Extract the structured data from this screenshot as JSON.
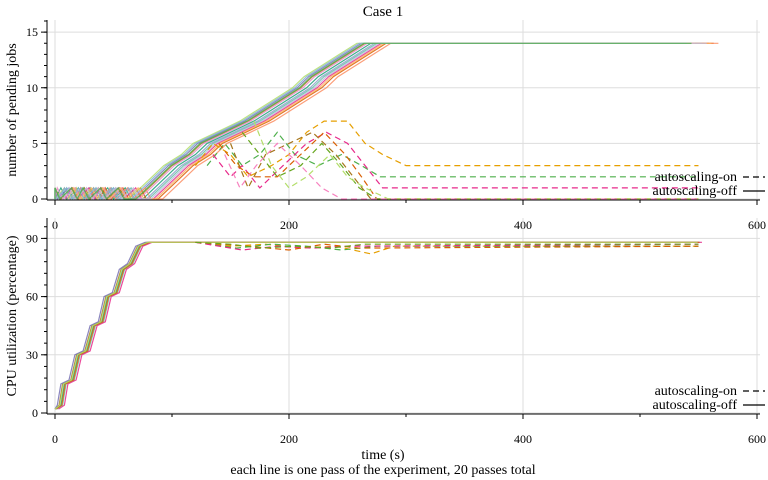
{
  "chart_data": [
    {
      "type": "line",
      "title": "Case 1",
      "ylabel": "number of pending jobs",
      "xlim": [
        0,
        600
      ],
      "ylim": [
        0,
        16
      ],
      "x_ticks": [
        0,
        200,
        400,
        600
      ],
      "y_ticks": [
        0,
        5,
        10,
        15
      ],
      "grid": true,
      "legend_position": "bottom-right",
      "legend": [
        {
          "label": "autoscaling-on",
          "style": "dashed"
        },
        {
          "label": "autoscaling-off",
          "style": "solid"
        }
      ],
      "series_off": {
        "name": "autoscaling-off",
        "style": "solid",
        "points": [
          [
            0,
            0
          ],
          [
            5,
            1
          ],
          [
            10,
            0
          ],
          [
            20,
            1
          ],
          [
            25,
            0
          ],
          [
            30,
            1
          ],
          [
            35,
            0
          ],
          [
            45,
            1
          ],
          [
            50,
            0
          ],
          [
            60,
            1
          ],
          [
            65,
            0
          ],
          [
            75,
            0
          ],
          [
            85,
            1
          ],
          [
            95,
            2
          ],
          [
            105,
            3
          ],
          [
            120,
            4
          ],
          [
            130,
            5
          ],
          [
            150,
            6
          ],
          [
            170,
            7
          ],
          [
            185,
            8
          ],
          [
            200,
            9
          ],
          [
            215,
            10
          ],
          [
            225,
            11
          ],
          [
            240,
            12
          ],
          [
            255,
            13
          ],
          [
            270,
            14
          ],
          [
            550,
            14
          ]
        ],
        "offsets": [
          0,
          5,
          -5,
          9,
          -8,
          13,
          -12,
          17,
          3,
          -3,
          11,
          -10,
          7,
          -6
        ]
      },
      "series_on": {
        "name": "autoscaling-on",
        "style": "dashed",
        "runs": [
          {
            "color": "#e69f00",
            "points": [
              [
                120,
                3
              ],
              [
                135,
                5
              ],
              [
                150,
                4
              ],
              [
                165,
                2
              ],
              [
                185,
                3
              ],
              [
                200,
                4
              ],
              [
                215,
                6
              ],
              [
                230,
                7
              ],
              [
                250,
                7
              ],
              [
                265,
                5
              ],
              [
                280,
                4
              ],
              [
                300,
                3
              ],
              [
                550,
                3
              ]
            ]
          },
          {
            "color": "#4daf4a",
            "points": [
              [
                130,
                3
              ],
              [
                145,
                5
              ],
              [
                160,
                3
              ],
              [
                175,
                4
              ],
              [
                190,
                6
              ],
              [
                205,
                4
              ],
              [
                225,
                3
              ],
              [
                245,
                4
              ],
              [
                262,
                3
              ],
              [
                278,
                2
              ],
              [
                295,
                2
              ],
              [
                550,
                2
              ]
            ]
          },
          {
            "color": "#e7298a",
            "points": [
              [
                135,
                4
              ],
              [
                150,
                2
              ],
              [
                160,
                3
              ],
              [
                175,
                1
              ],
              [
                195,
                3
              ],
              [
                215,
                5
              ],
              [
                232,
                6
              ],
              [
                250,
                5
              ],
              [
                265,
                3
              ],
              [
                280,
                1
              ],
              [
                550,
                1
              ]
            ]
          },
          {
            "color": "#d95f02",
            "points": [
              [
                140,
                5
              ],
              [
                155,
                3
              ],
              [
                170,
                2
              ],
              [
                190,
                2
              ],
              [
                210,
                4
              ],
              [
                230,
                6
              ],
              [
                248,
                4
              ],
              [
                262,
                2
              ],
              [
                275,
                0
              ],
              [
                550,
                0
              ]
            ]
          },
          {
            "color": "#a6761d",
            "points": [
              [
                150,
                5
              ],
              [
                165,
                1
              ],
              [
                180,
                4
              ],
              [
                200,
                5
              ],
              [
                220,
                6
              ],
              [
                240,
                4
              ],
              [
                255,
                2
              ],
              [
                270,
                0
              ],
              [
                550,
                0
              ]
            ]
          },
          {
            "color": "#66a61e",
            "points": [
              [
                160,
                6
              ],
              [
                175,
                4
              ],
              [
                190,
                2
              ],
              [
                210,
                3
              ],
              [
                228,
                5
              ],
              [
                245,
                3
              ],
              [
                260,
                1
              ],
              [
                275,
                0
              ],
              [
                550,
                0
              ]
            ]
          },
          {
            "color": "#b3de69",
            "points": [
              [
                170,
                7
              ],
              [
                185,
                3
              ],
              [
                200,
                1
              ],
              [
                215,
                2
              ],
              [
                235,
                4
              ],
              [
                250,
                2
              ],
              [
                265,
                1
              ],
              [
                285,
                0
              ],
              [
                550,
                0
              ]
            ]
          },
          {
            "color": "#f781bf",
            "points": [
              [
                145,
                4
              ],
              [
                158,
                1
              ],
              [
                172,
                3
              ],
              [
                190,
                5
              ],
              [
                210,
                3
              ],
              [
                228,
                1
              ],
              [
                245,
                0
              ],
              [
                550,
                0
              ]
            ]
          }
        ]
      }
    },
    {
      "type": "line",
      "ylabel": "CPU utilization (percentage)",
      "xlabel": "time (s)",
      "xlim": [
        0,
        600
      ],
      "ylim": [
        0,
        100
      ],
      "x_ticks": [
        0,
        200,
        400,
        600
      ],
      "y_ticks": [
        0,
        30,
        60,
        90
      ],
      "grid": true,
      "legend_position": "bottom-right",
      "legend": [
        {
          "label": "autoscaling-on",
          "style": "dashed"
        },
        {
          "label": "autoscaling-off",
          "style": "solid"
        }
      ],
      "series_off": {
        "name": "autoscaling-off",
        "style": "solid",
        "points": [
          [
            0,
            2
          ],
          [
            5,
            4
          ],
          [
            8,
            15
          ],
          [
            15,
            17
          ],
          [
            20,
            30
          ],
          [
            27,
            32
          ],
          [
            33,
            45
          ],
          [
            40,
            47
          ],
          [
            45,
            60
          ],
          [
            52,
            62
          ],
          [
            58,
            74
          ],
          [
            65,
            77
          ],
          [
            72,
            86
          ],
          [
            80,
            88
          ],
          [
            550,
            88
          ]
        ],
        "offsets": [
          0,
          1.5,
          -1.5,
          3,
          -3,
          0.8,
          -0.8
        ]
      },
      "series_on": {
        "name": "autoscaling-on",
        "style": "dashed",
        "runs": [
          {
            "color": "#e69f00",
            "points": [
              [
                120,
                88
              ],
              [
                150,
                86
              ],
              [
                180,
                87
              ],
              [
                210,
                85
              ],
              [
                240,
                86
              ],
              [
                270,
                82
              ],
              [
                290,
                86
              ],
              [
                550,
                86
              ]
            ]
          },
          {
            "color": "#4daf4a",
            "points": [
              [
                120,
                88
              ],
              [
                155,
                85
              ],
              [
                185,
                87
              ],
              [
                215,
                86
              ],
              [
                245,
                84
              ],
              [
                275,
                86
              ],
              [
                550,
                86
              ]
            ]
          },
          {
            "color": "#e7298a",
            "points": [
              [
                120,
                88
              ],
              [
                160,
                84
              ],
              [
                190,
                86
              ],
              [
                220,
                85
              ],
              [
                250,
                86
              ],
              [
                550,
                87
              ]
            ]
          },
          {
            "color": "#d95f02",
            "points": [
              [
                120,
                88
              ],
              [
                165,
                86
              ],
              [
                200,
                84
              ],
              [
                230,
                87
              ],
              [
                260,
                85
              ],
              [
                550,
                86
              ]
            ]
          },
          {
            "color": "#66a61e",
            "points": [
              [
                120,
                88
              ],
              [
                150,
                87
              ],
              [
                175,
                85
              ],
              [
                205,
                86
              ],
              [
                235,
                85
              ],
              [
                265,
                87
              ],
              [
                550,
                87
              ]
            ]
          }
        ]
      }
    }
  ],
  "footnote": "each line is one pass of the experiment, 20 passes total"
}
